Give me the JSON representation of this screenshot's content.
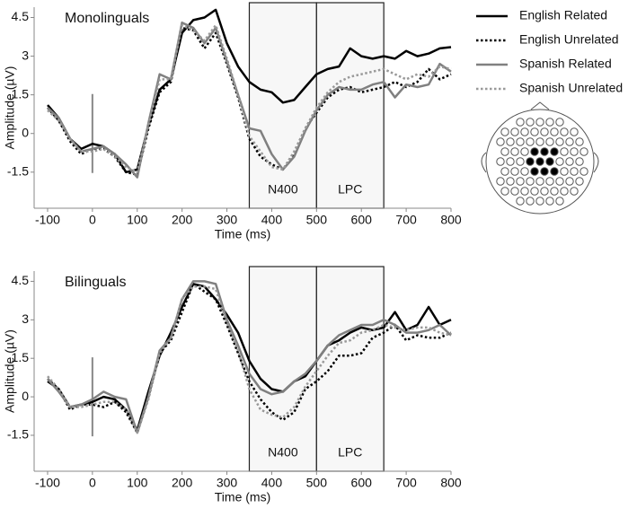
{
  "chart_data": [
    {
      "type": "line",
      "title": "Monolinguals",
      "x_label": "Time (ms)",
      "y_label": "Amplitude (µV)",
      "x": [
        -100,
        -75,
        -50,
        -25,
        0,
        25,
        50,
        75,
        100,
        125,
        150,
        175,
        200,
        225,
        250,
        275,
        300,
        325,
        350,
        375,
        400,
        425,
        450,
        475,
        500,
        525,
        550,
        575,
        600,
        625,
        650,
        675,
        700,
        725,
        750,
        775,
        800
      ],
      "series": [
        {
          "name": "English Related",
          "color": "#000000",
          "dash": false,
          "values": [
            1.1,
            0.6,
            -0.2,
            -0.6,
            -0.4,
            -0.5,
            -0.8,
            -1.5,
            -1.4,
            0.3,
            1.7,
            2.1,
            3.9,
            4.4,
            4.5,
            4.8,
            3.5,
            2.6,
            2.0,
            1.7,
            1.6,
            1.2,
            1.3,
            1.8,
            2.3,
            2.5,
            2.6,
            3.3,
            3.0,
            2.9,
            3.0,
            2.9,
            3.2,
            3.0,
            3.1,
            3.3,
            3.35
          ]
        },
        {
          "name": "English Unrelated",
          "color": "#000000",
          "dash": true,
          "values": [
            1.0,
            0.5,
            -0.3,
            -0.8,
            -0.6,
            -0.6,
            -0.9,
            -1.5,
            -1.6,
            0.2,
            1.6,
            2.0,
            4.1,
            4.0,
            3.3,
            3.9,
            2.7,
            1.4,
            -0.2,
            -0.9,
            -1.2,
            -1.4,
            -0.8,
            0.2,
            0.8,
            1.4,
            1.7,
            1.8,
            1.6,
            1.7,
            1.8,
            2.0,
            1.8,
            2.0,
            2.5,
            2.1,
            2.3
          ]
        },
        {
          "name": "Spanish Related",
          "color": "#808080",
          "dash": false,
          "values": [
            1.0,
            0.6,
            -0.2,
            -0.7,
            -0.6,
            -0.5,
            -0.8,
            -1.2,
            -1.7,
            0.4,
            2.3,
            2.1,
            4.3,
            4.1,
            3.5,
            4.1,
            2.8,
            1.5,
            0.2,
            0.1,
            -0.8,
            -1.4,
            -0.9,
            0.1,
            0.9,
            1.5,
            1.8,
            1.7,
            1.7,
            1.9,
            2.0,
            1.4,
            1.9,
            1.8,
            1.9,
            2.7,
            2.4
          ]
        },
        {
          "name": "Spanish Unrelated",
          "color": "#999999",
          "dash": true,
          "values": [
            0.9,
            0.5,
            -0.2,
            -0.7,
            -0.7,
            -0.6,
            -0.9,
            -1.3,
            -1.5,
            0.3,
            2.1,
            2.1,
            4.2,
            4.0,
            3.6,
            4.2,
            2.9,
            1.5,
            -0.1,
            -0.7,
            -1.3,
            -1.4,
            -0.7,
            0.2,
            1.0,
            1.6,
            2.0,
            2.2,
            2.3,
            2.4,
            2.5,
            2.3,
            2.1,
            2.3,
            2.2,
            2.6,
            2.5
          ]
        }
      ],
      "windows": [
        {
          "xlim": [
            350,
            500
          ],
          "label": "N400"
        },
        {
          "xlim": [
            500,
            650
          ],
          "label": "LPC"
        }
      ],
      "onset": 0,
      "xlim": [
        -130,
        800
      ],
      "xticks": [
        -100,
        0,
        100,
        200,
        300,
        400,
        500,
        600,
        700,
        800
      ],
      "ylim": [
        -2.9,
        4.9
      ],
      "yticks": [
        -1.5,
        0,
        1.5,
        3,
        4.5
      ],
      "legend": "right"
    },
    {
      "type": "line",
      "title": "Bilinguals",
      "x_label": "Time (ms)",
      "y_label": "Amplitude (µV)",
      "x": [
        -100,
        -75,
        -50,
        -25,
        0,
        25,
        50,
        75,
        100,
        125,
        150,
        175,
        200,
        225,
        250,
        275,
        300,
        325,
        350,
        375,
        400,
        425,
        450,
        475,
        500,
        525,
        550,
        575,
        600,
        625,
        650,
        675,
        700,
        725,
        750,
        775,
        800
      ],
      "series": [
        {
          "color": "#000000",
          "dash": false,
          "values": [
            0.6,
            0.3,
            -0.4,
            -0.3,
            -0.2,
            0.0,
            -0.1,
            -0.5,
            -1.3,
            0.2,
            1.6,
            2.5,
            3.5,
            4.4,
            4.3,
            3.8,
            3.2,
            2.5,
            1.4,
            0.7,
            0.3,
            0.2,
            0.6,
            0.8,
            1.4,
            2.0,
            2.2,
            2.5,
            2.7,
            2.6,
            2.7,
            3.3,
            2.6,
            2.8,
            3.5,
            2.8,
            3.0
          ]
        },
        {
          "color": "#000000",
          "dash": true,
          "values": [
            0.7,
            0.3,
            -0.5,
            -0.3,
            -0.3,
            -0.4,
            -0.2,
            -0.6,
            -1.4,
            0.0,
            1.7,
            2.2,
            3.3,
            4.4,
            4.1,
            3.8,
            2.8,
            1.7,
            0.6,
            -0.1,
            -0.6,
            -0.9,
            -0.6,
            0.3,
            0.6,
            1.0,
            1.6,
            1.6,
            1.7,
            2.3,
            2.5,
            2.8,
            2.2,
            2.4,
            2.3,
            2.3,
            2.5
          ]
        },
        {
          "color": "#808080",
          "dash": false,
          "values": [
            0.7,
            0.2,
            -0.4,
            -0.3,
            -0.1,
            0.2,
            0.0,
            -0.1,
            -1.4,
            0.0,
            1.8,
            2.3,
            3.8,
            4.5,
            4.5,
            4.4,
            3.0,
            2.0,
            0.9,
            0.3,
            0.1,
            0.2,
            0.6,
            0.9,
            1.4,
            2.0,
            2.4,
            2.6,
            2.8,
            2.8,
            3.0,
            2.8,
            2.5,
            2.5,
            2.6,
            2.8,
            2.4
          ]
        },
        {
          "color": "#999999",
          "dash": true,
          "values": [
            0.8,
            0.3,
            -0.4,
            -0.4,
            -0.3,
            -0.2,
            -0.2,
            -0.5,
            -1.4,
            -0.1,
            1.7,
            2.3,
            3.8,
            4.3,
            4.3,
            4.2,
            2.9,
            1.8,
            0.3,
            -0.5,
            -0.7,
            -0.8,
            -0.4,
            0.4,
            1.0,
            1.6,
            2.1,
            2.2,
            2.5,
            2.6,
            2.8,
            2.7,
            2.6,
            2.7,
            2.7,
            2.5,
            2.4
          ]
        }
      ],
      "windows": [
        {
          "xlim": [
            350,
            500
          ],
          "label": "N400"
        },
        {
          "xlim": [
            500,
            650
          ],
          "label": "LPC"
        }
      ],
      "onset": 0,
      "xlim": [
        -130,
        800
      ],
      "xticks": [
        -100,
        0,
        100,
        200,
        300,
        400,
        500,
        600,
        700,
        800
      ],
      "ylim": [
        -2.9,
        4.9
      ],
      "yticks": [
        -1.5,
        0,
        1.5,
        3,
        4.5
      ]
    }
  ]
}
